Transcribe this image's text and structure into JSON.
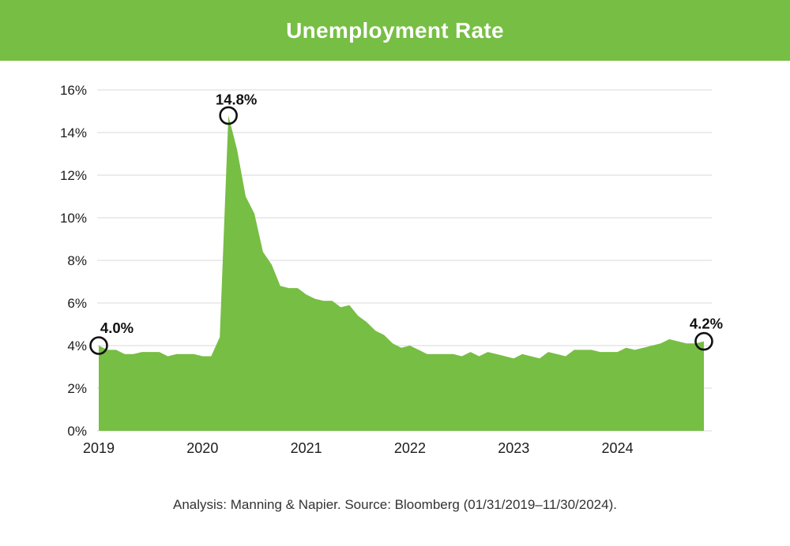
{
  "header": {
    "title": "Unemployment Rate",
    "bg_color": "#77BE44",
    "text_color": "#FFFFFF"
  },
  "footer": {
    "text": "Analysis: Manning & Napier. Source: Bloomberg (01/31/2019–11/30/2024)."
  },
  "chart_data": {
    "type": "area",
    "title": "Unemployment Rate",
    "x_start": "2019-01",
    "x_end": "2024-11",
    "x_tick_labels": [
      "2019",
      "2020",
      "2021",
      "2022",
      "2023",
      "2024"
    ],
    "y_tick_labels": [
      "0%",
      "2%",
      "4%",
      "6%",
      "8%",
      "10%",
      "12%",
      "14%",
      "16%"
    ],
    "ylim": [
      0,
      16
    ],
    "y_step": 2,
    "grid": true,
    "legend": "none",
    "area_color": "#77BE44",
    "gridline_color": "#D9D9D9",
    "tick_label_color": "#1C1C1C",
    "annotation_color": "#111111",
    "values": [
      4.0,
      3.8,
      3.8,
      3.6,
      3.6,
      3.7,
      3.7,
      3.7,
      3.5,
      3.6,
      3.6,
      3.6,
      3.5,
      3.5,
      4.4,
      14.8,
      13.2,
      11.0,
      10.2,
      8.4,
      7.8,
      6.8,
      6.7,
      6.7,
      6.4,
      6.2,
      6.1,
      6.1,
      5.8,
      5.9,
      5.4,
      5.1,
      4.7,
      4.5,
      4.1,
      3.9,
      4.0,
      3.8,
      3.6,
      3.6,
      3.6,
      3.6,
      3.5,
      3.7,
      3.5,
      3.7,
      3.6,
      3.5,
      3.4,
      3.6,
      3.5,
      3.4,
      3.7,
      3.6,
      3.5,
      3.8,
      3.8,
      3.8,
      3.7,
      3.7,
      3.7,
      3.9,
      3.8,
      3.9,
      4.0,
      4.1,
      4.3,
      4.2,
      4.1,
      4.1,
      4.2
    ],
    "annotations": [
      {
        "index": 0,
        "label": "4.0%"
      },
      {
        "index": 15,
        "label": "14.8%"
      },
      {
        "index": 70,
        "label": "4.2%"
      }
    ]
  }
}
